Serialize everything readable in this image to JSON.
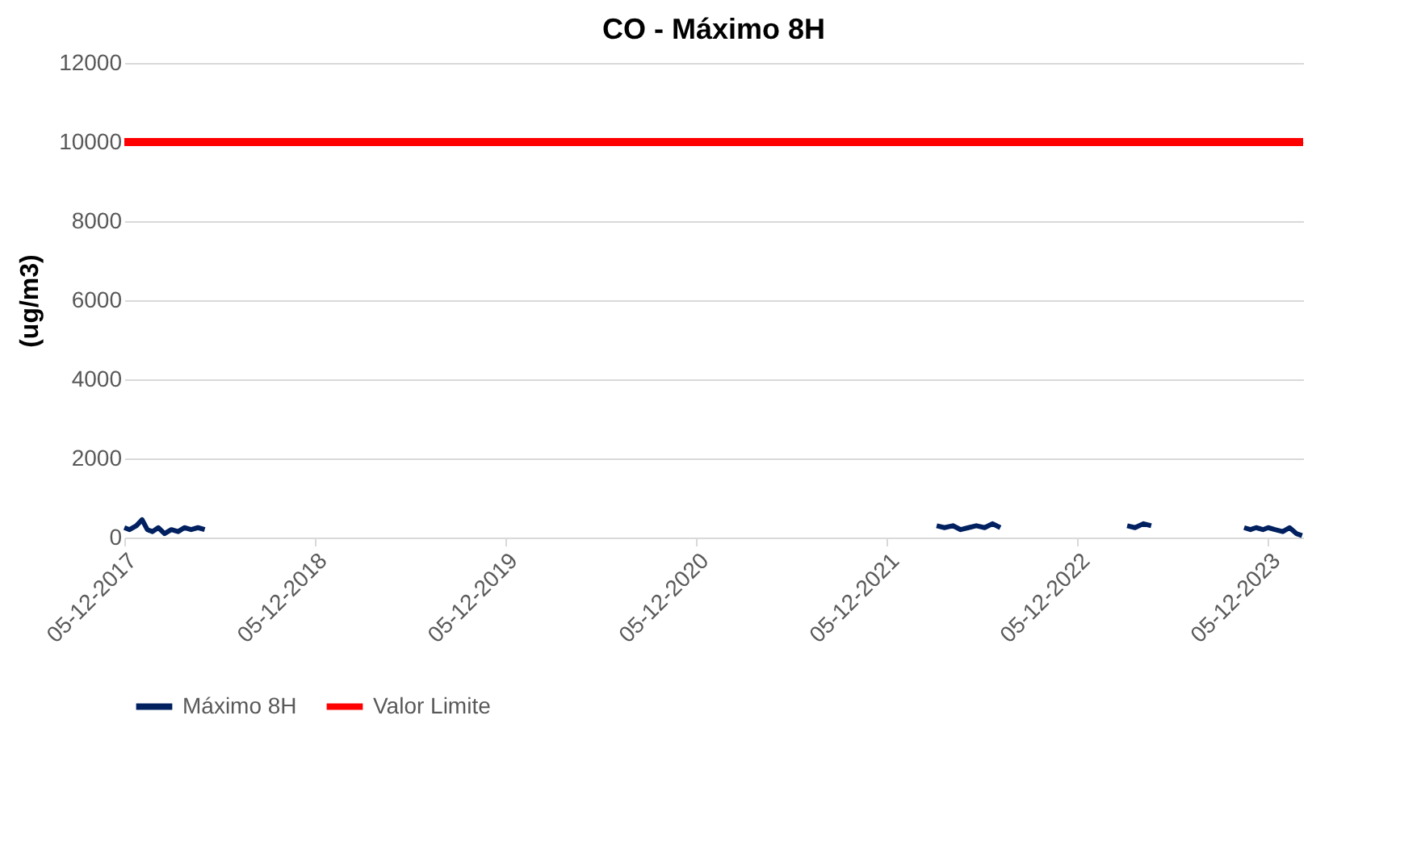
{
  "chart_data": {
    "type": "line",
    "title": "CO - Máximo 8H",
    "ylabel": "(ug/m3)",
    "xlim": [
      "2017-12-05",
      "2024-02-10"
    ],
    "xticks": [
      {
        "value": "2017-12-05",
        "label": "05-12-2017"
      },
      {
        "value": "2018-12-05",
        "label": "05-12-2018"
      },
      {
        "value": "2019-12-05",
        "label": "05-12-2019"
      },
      {
        "value": "2020-12-05",
        "label": "05-12-2020"
      },
      {
        "value": "2021-12-05",
        "label": "05-12-2021"
      },
      {
        "value": "2022-12-05",
        "label": "05-12-2022"
      },
      {
        "value": "2023-12-05",
        "label": "05-12-2023"
      }
    ],
    "ylim": [
      0,
      12000
    ],
    "yticks": [
      0,
      2000,
      4000,
      6000,
      8000,
      10000,
      12000
    ],
    "grid": "y",
    "legend": "bottom",
    "series": [
      {
        "name": "Máximo 8H",
        "color": "#002060",
        "x": [
          "2017-12-05",
          "2017-12-15",
          "2017-12-28",
          "2018-01-08",
          "2018-01-18",
          "2018-01-28",
          "2018-02-08",
          "2018-02-20",
          "2018-03-05",
          "2018-03-18",
          "2018-03-30",
          "2018-04-12",
          "2018-04-25",
          "2018-05-08",
          "2018-05-12",
          "2022-03-10",
          "2022-03-25",
          "2022-04-10",
          "2022-04-25",
          "2022-05-10",
          "2022-05-25",
          "2022-06-10",
          "2022-06-25",
          "2022-07-10",
          "2022-07-14",
          "2023-03-10",
          "2023-03-25",
          "2023-04-10",
          "2023-04-25",
          "2023-05-08",
          "2023-10-20",
          "2023-11-01",
          "2023-11-12",
          "2023-11-25",
          "2023-12-05",
          "2023-12-18",
          "2024-01-02",
          "2024-01-15",
          "2024-01-28",
          "2024-02-08"
        ],
        "values": [
          250,
          200,
          300,
          450,
          200,
          150,
          250,
          100,
          200,
          150,
          250,
          200,
          250,
          200,
          null,
          300,
          250,
          300,
          200,
          250,
          300,
          250,
          350,
          250,
          null,
          300,
          250,
          350,
          300,
          null,
          250,
          200,
          250,
          200,
          250,
          200,
          150,
          250,
          100,
          50
        ]
      }
    ],
    "ref_lines": [
      {
        "axis": "y",
        "value": 10000,
        "label": "Valor Limite",
        "color": "#ff0000"
      }
    ]
  }
}
